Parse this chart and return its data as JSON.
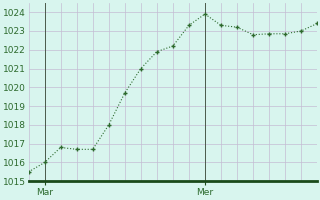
{
  "x": [
    0,
    1,
    2,
    3,
    4,
    5,
    6,
    7,
    8,
    9,
    10,
    11,
    12,
    13,
    14,
    15,
    16,
    17,
    18
  ],
  "y": [
    1015.5,
    1016.0,
    1016.8,
    1016.7,
    1016.7,
    1018.0,
    1019.7,
    1021.0,
    1021.9,
    1022.2,
    1023.3,
    1023.9,
    1023.3,
    1023.2,
    1022.8,
    1022.85,
    1022.85,
    1023.0,
    1023.4
  ],
  "ylim": [
    1015,
    1024.5
  ],
  "yticks": [
    1015,
    1016,
    1017,
    1018,
    1019,
    1020,
    1021,
    1022,
    1023,
    1024
  ],
  "xtick_labels": [
    "Mar",
    "Mer"
  ],
  "xtick_positions": [
    1,
    11
  ],
  "vline_x": [
    1,
    11
  ],
  "n_xgrid": 19,
  "line_color": "#2d6a2d",
  "marker_color": "#2d6a2d",
  "bg_color": "#d8f5ee",
  "grid_color": "#c4bcd4",
  "axis_color": "#1a4a1a",
  "tick_label_color": "#2d6a2d",
  "figsize": [
    3.2,
    2.0
  ],
  "dpi": 100
}
